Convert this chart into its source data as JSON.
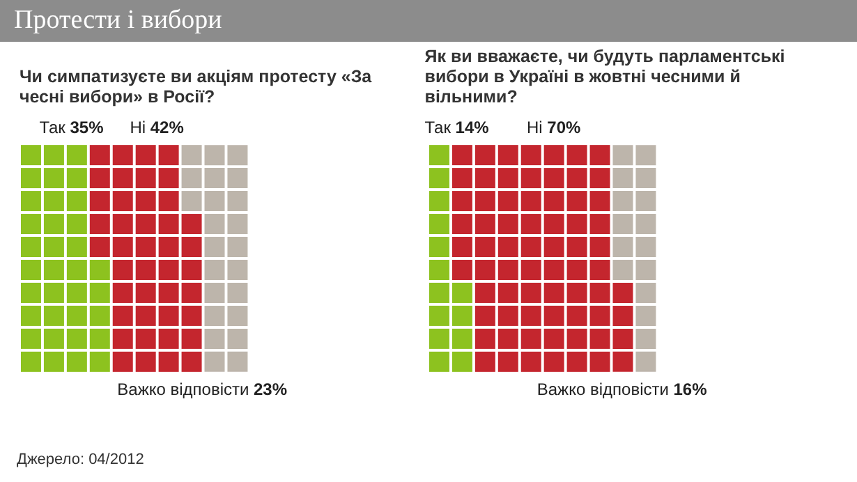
{
  "chart_data": [
    {
      "type": "other",
      "title": "Протести і вибори",
      "subtitle": "Чи симпатизуєте ви акціям протесту «За чесні вибори» в Росії?",
      "categories": [
        "Так",
        "Ні",
        "Важко відповісти"
      ],
      "values": [
        35,
        42,
        23
      ],
      "value_labels": [
        "35%",
        "42%",
        "23%"
      ],
      "colors": [
        "#8dc21f",
        "#c4262e",
        "#bdb5ab"
      ],
      "annotations": [
        "Джерело: 04/2012"
      ]
    },
    {
      "type": "other",
      "subtitle": "Як ви вважаєте, чи будуть парламентські вибори в Україні в жовтні чесними й вільними?",
      "categories": [
        "Так",
        "Ні",
        "Важко відповісти"
      ],
      "values": [
        14,
        70,
        16
      ],
      "value_labels": [
        "14%",
        "70%",
        "16%"
      ],
      "colors": [
        "#8dc21f",
        "#c4262e",
        "#bdb5ab"
      ]
    }
  ]
}
